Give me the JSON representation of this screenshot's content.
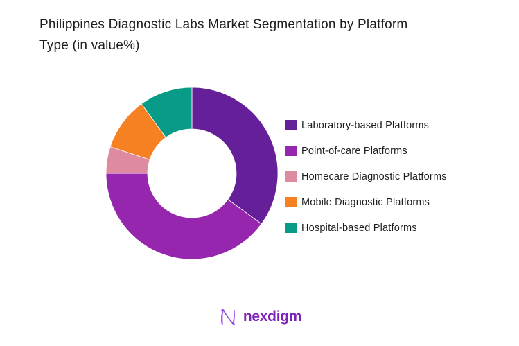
{
  "title": "Philippines Diagnostic Labs Market Segmentation by Platform\nType (in value%)",
  "chart_data": {
    "type": "pie",
    "subtype": "donut",
    "title": "Philippines Diagnostic Labs Market Segmentation by Platform Type (in value%)",
    "units": "percent of value",
    "categories": [
      "Laboratory-based Platforms",
      "Point-of-care Platforms",
      "Homecare Diagnostic Platforms",
      "Mobile Diagnostic Platforms",
      "Hospital-based Platforms"
    ],
    "values": [
      35,
      40,
      5,
      10,
      10
    ],
    "colors": [
      "#651f99",
      "#9726af",
      "#de8ba1",
      "#f58122",
      "#089b87"
    ],
    "start_angle_deg": 0,
    "direction": "clockwise",
    "inner_radius_ratio": 0.52,
    "legend_position": "right"
  },
  "brand": {
    "name": "nexdigm",
    "color": "#7d22ba"
  }
}
